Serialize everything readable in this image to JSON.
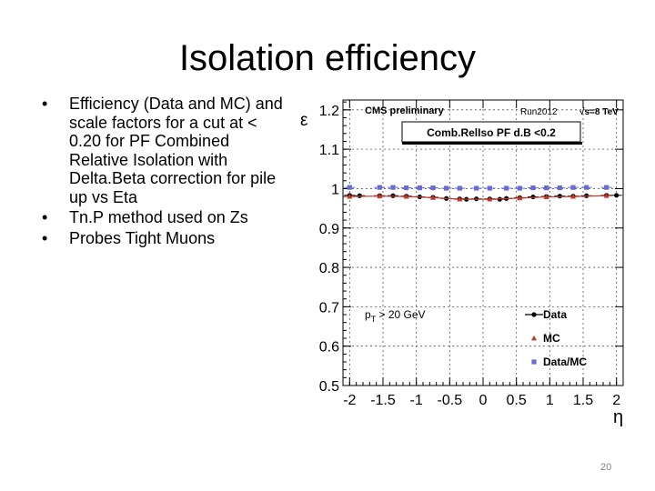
{
  "slide": {
    "title": "Isolation efficiency",
    "bullets": [
      "Efficiency (Data and MC) and scale factors for a cut at < 0.20 for PF Combined Relative Isolation with Delta.Beta correction for pile up vs Eta",
      "Tn.P method used on Zs",
      "Probes Tight Muons"
    ],
    "page_number": "20"
  },
  "chart_data": {
    "type": "scatter",
    "header_left": "CMS preliminary",
    "header_mid": "Run2012",
    "header_right": "√s=8 TeV",
    "box_label": "Comb.RelIso PF d.B <0.2",
    "annotation": "p_T > 20 GeV",
    "xlabel": "η",
    "ylabel": "ε",
    "xlim": [
      -2.1,
      2.1
    ],
    "ylim": [
      0.5,
      1.2
    ],
    "xticks": [
      -2,
      -1.5,
      -1,
      -0.5,
      0,
      0.5,
      1,
      1.5,
      2
    ],
    "yticks": [
      0.5,
      0.6,
      0.7,
      0.8,
      0.9,
      1,
      1.1,
      1.2
    ],
    "xtick_labels": [
      "-2",
      "-1.5",
      "-1",
      "-0.5",
      "0",
      "0.5",
      "1",
      "1.5",
      "2"
    ],
    "ytick_labels": [
      "0.5",
      "0.6",
      "0.7",
      "0.8",
      "0.9",
      "1",
      "1.1",
      "1.2"
    ],
    "grid": true,
    "legend_position": "bottom-right",
    "series": [
      {
        "name": "Data",
        "marker": "circle",
        "color": "#000000",
        "x": [
          -2.0,
          -1.85,
          -1.55,
          -1.35,
          -1.15,
          -0.95,
          -0.75,
          -0.55,
          -0.35,
          -0.25,
          -0.1,
          0.1,
          0.25,
          0.35,
          0.55,
          0.75,
          0.95,
          1.15,
          1.35,
          1.55,
          1.85,
          2.0
        ],
        "y": [
          0.983,
          0.982,
          0.982,
          0.982,
          0.981,
          0.979,
          0.978,
          0.975,
          0.974,
          0.973,
          0.974,
          0.974,
          0.973,
          0.975,
          0.977,
          0.979,
          0.98,
          0.981,
          0.981,
          0.982,
          0.983,
          0.983
        ]
      },
      {
        "name": "MC",
        "marker": "triangle",
        "color": "#c0392b",
        "x": [
          -2.0,
          -1.55,
          -1.15,
          -0.75,
          -0.35,
          0.1,
          0.55,
          0.95,
          1.35,
          1.85
        ],
        "y": [
          0.98,
          0.981,
          0.98,
          0.977,
          0.973,
          0.973,
          0.976,
          0.979,
          0.98,
          0.982
        ]
      },
      {
        "name": "Data/MC",
        "marker": "square",
        "color": "#6b6bd6",
        "x": [
          -2.0,
          -1.55,
          -1.35,
          -1.15,
          -0.95,
          -0.75,
          -0.55,
          -0.35,
          -0.1,
          0.1,
          0.35,
          0.55,
          0.75,
          0.95,
          1.15,
          1.35,
          1.55,
          1.85
        ],
        "y": [
          1.003,
          1.003,
          1.003,
          1.002,
          1.002,
          1.002,
          1.001,
          1.001,
          1.001,
          1.001,
          1.001,
          1.001,
          1.002,
          1.002,
          1.002,
          1.003,
          1.003,
          1.003
        ]
      }
    ]
  }
}
